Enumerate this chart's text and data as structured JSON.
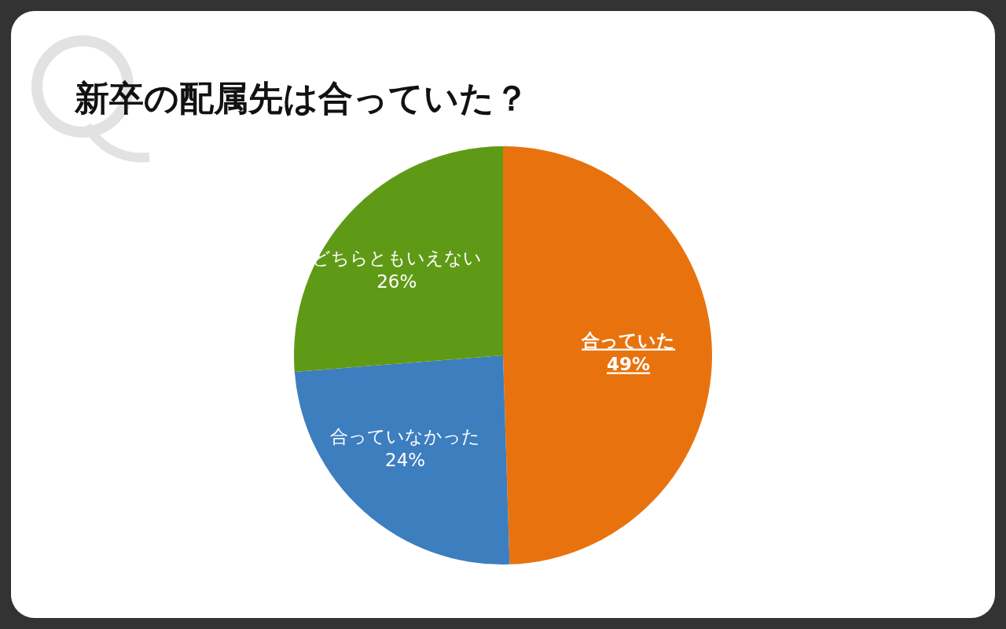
{
  "chart_data": {
    "type": "pie",
    "title": "新卒の配属先は合っていた？",
    "categories": [
      "合っていた",
      "合っていなかった",
      "どちらともいえない"
    ],
    "values": [
      49,
      24,
      26
    ],
    "value_labels": [
      "49%",
      "24%",
      "26%"
    ],
    "colors": [
      "#e8730e",
      "#3d7ebf",
      "#5f9a16"
    ]
  }
}
